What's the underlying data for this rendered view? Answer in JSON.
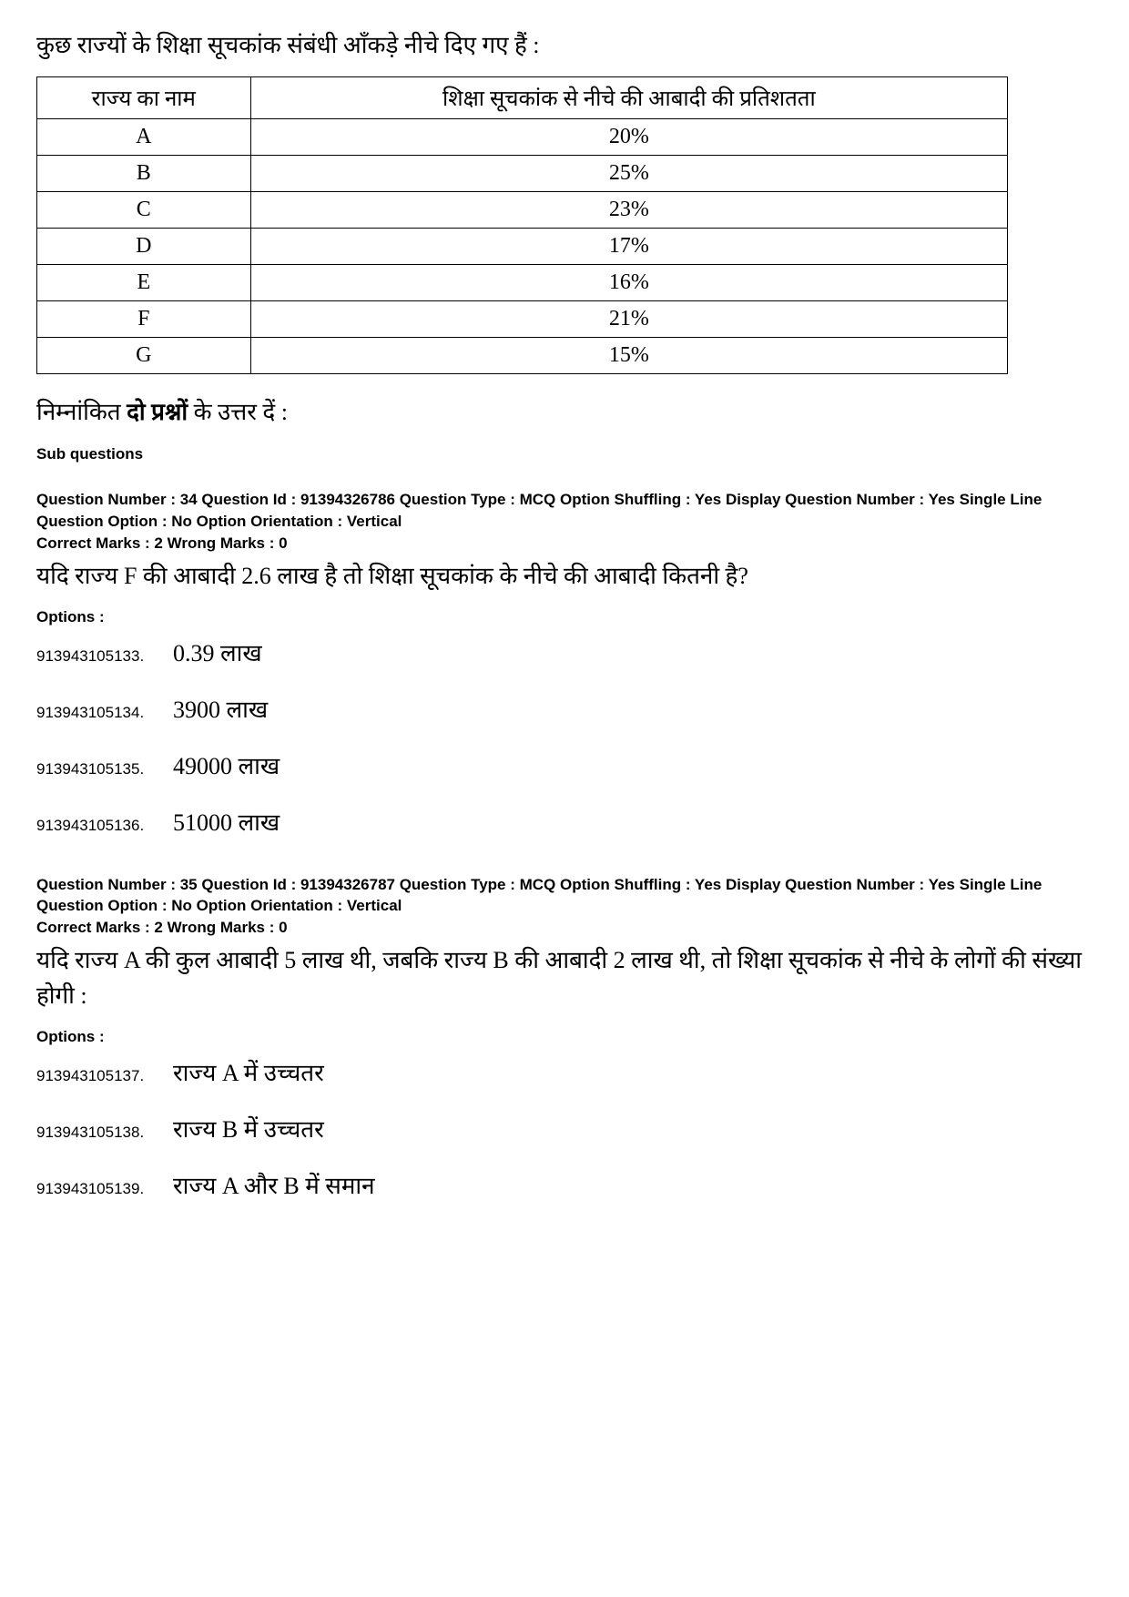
{
  "intro": "कुछ राज्यों के शिक्षा सूचकांक संबंधी आँकड़े नीचे दिए गए हैं :",
  "table": {
    "type": "table",
    "columns": [
      "राज्य का नाम",
      "शिक्षा सूचकांक से नीचे की आबादी की प्रतिशतता"
    ],
    "rows": [
      [
        "A",
        "20%"
      ],
      [
        "B",
        "25%"
      ],
      [
        "C",
        "23%"
      ],
      [
        "D",
        "17%"
      ],
      [
        "E",
        "16%"
      ],
      [
        "F",
        "21%"
      ],
      [
        "G",
        "15%"
      ]
    ],
    "border_color": "#000000",
    "background_color": "#ffffff",
    "header_fontsize": 24,
    "cell_fontsize": 24,
    "col1_width_pct": 22
  },
  "instruction_pre": "निम्नांकित ",
  "instruction_bold": "दो प्रश्नों",
  "instruction_post": " के उत्तर दें :",
  "sub_questions_label": "Sub questions",
  "q34": {
    "meta": "Question Number : 34  Question Id : 91394326786  Question Type : MCQ  Option Shuffling : Yes  Display Question Number : Yes  Single Line Question Option : No  Option Orientation : Vertical",
    "marks": "Correct Marks : 2  Wrong Marks : 0",
    "text": "यदि राज्य F की आबादी 2.6 लाख है तो शिक्षा सूचकांक के नीचे की आबादी कितनी है?",
    "options_label": "Options :",
    "options": [
      {
        "id": "913943105133.",
        "text": "0.39 लाख"
      },
      {
        "id": "913943105134.",
        "text": "3900 लाख"
      },
      {
        "id": "913943105135.",
        "text": "49000 लाख"
      },
      {
        "id": "913943105136.",
        "text": "51000 लाख"
      }
    ]
  },
  "q35": {
    "meta": "Question Number : 35  Question Id : 91394326787  Question Type : MCQ  Option Shuffling : Yes  Display Question Number : Yes  Single Line Question Option : No  Option Orientation : Vertical",
    "marks": "Correct Marks : 2  Wrong Marks : 0",
    "text": "यदि राज्य A की कुल आबादी 5 लाख थी, जबकि राज्य B की आबादी 2 लाख थी, तो शिक्षा सूचकांक से नीचे के लोगों की संख्या होगी :",
    "options_label": "Options :",
    "options": [
      {
        "id": "913943105137.",
        "text": "राज्य A में उच्चतर"
      },
      {
        "id": "913943105138.",
        "text": "राज्य B में उच्चतर"
      },
      {
        "id": "913943105139.",
        "text": "राज्य A और B में समान"
      }
    ]
  }
}
